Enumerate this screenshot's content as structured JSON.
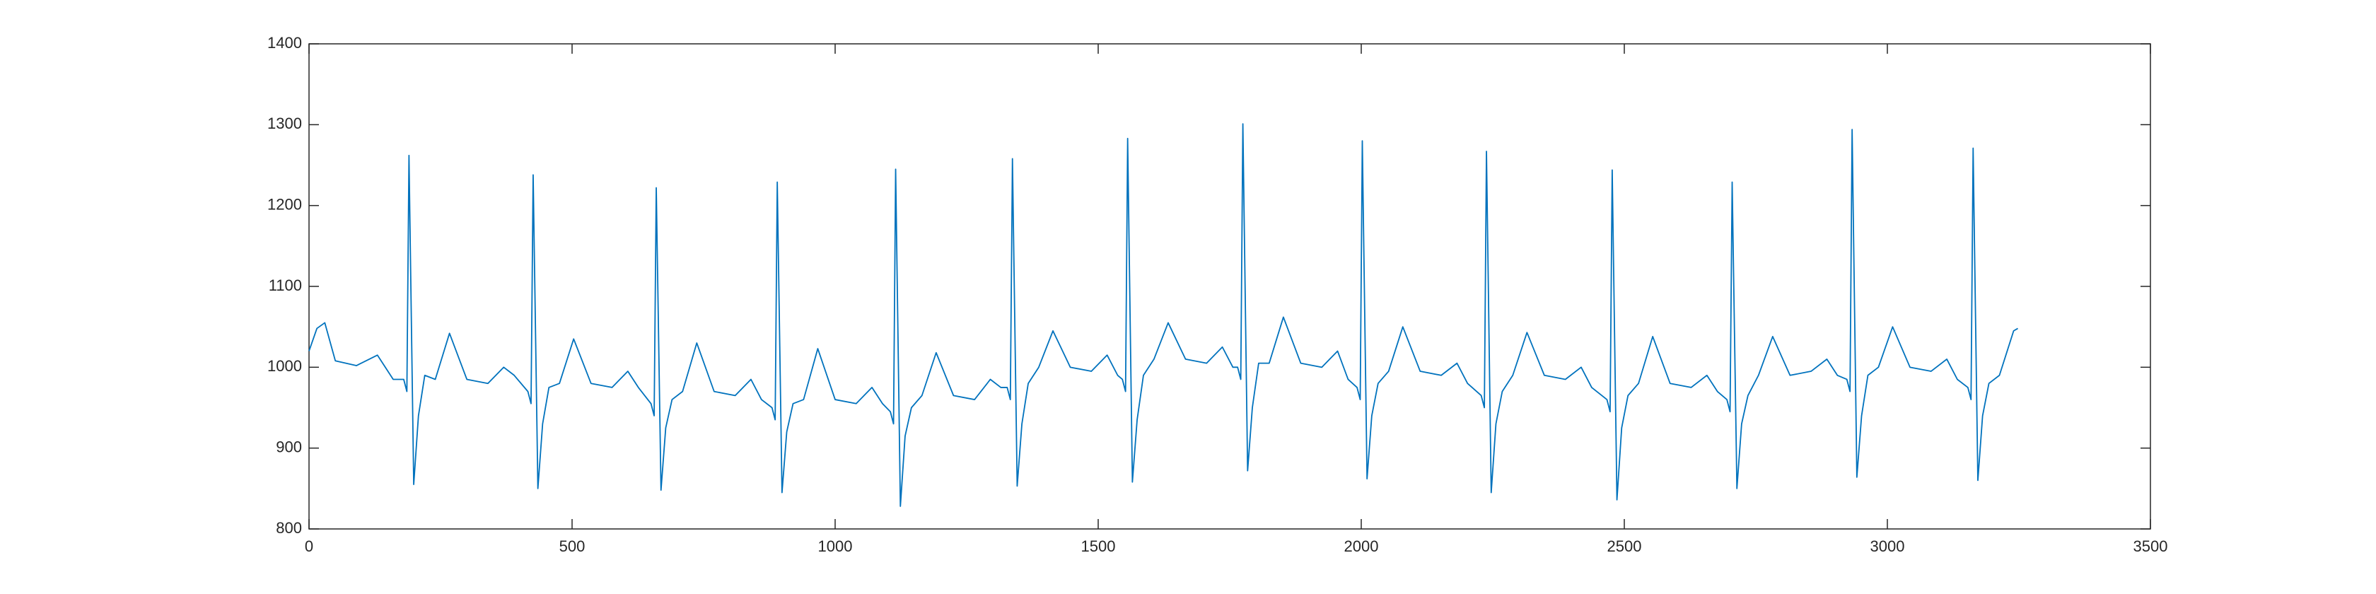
{
  "chart_data": {
    "type": "line",
    "x": [
      0,
      15,
      30,
      50,
      90,
      130,
      160,
      180,
      186,
      190,
      199,
      208,
      220,
      240,
      267,
      300,
      340,
      370,
      390,
      416,
      422,
      426,
      435,
      444,
      456,
      476,
      503,
      536,
      576,
      606,
      626,
      650,
      656,
      660,
      669,
      678,
      690,
      710,
      737,
      770,
      810,
      840,
      860,
      880,
      886,
      890,
      899,
      908,
      920,
      940,
      967,
      1000,
      1040,
      1070,
      1090,
      1105,
      1111,
      1115,
      1124,
      1133,
      1145,
      1165,
      1192,
      1225,
      1265,
      1295,
      1315,
      1327,
      1333,
      1337,
      1346,
      1355,
      1367,
      1387,
      1414,
      1447,
      1487,
      1517,
      1537,
      1546,
      1552,
      1556,
      1565,
      1574,
      1586,
      1606,
      1633,
      1666,
      1706,
      1736,
      1756,
      1765,
      1771,
      1775,
      1784,
      1793,
      1805,
      1825,
      1852,
      1885,
      1925,
      1955,
      1975,
      1992,
      1998,
      2002,
      2011,
      2020,
      2032,
      2052,
      2079,
      2112,
      2152,
      2182,
      2202,
      2228,
      2234,
      2238,
      2247,
      2256,
      2268,
      2288,
      2315,
      2348,
      2388,
      2418,
      2438,
      2467,
      2473,
      2477,
      2486,
      2495,
      2507,
      2527,
      2554,
      2587,
      2627,
      2657,
      2677,
      2695,
      2701,
      2705,
      2714,
      2723,
      2735,
      2755,
      2782,
      2815,
      2855,
      2885,
      2905,
      2923,
      2929,
      2933,
      2942,
      2951,
      2963,
      2983,
      3010,
      3043,
      3083,
      3113,
      3133,
      3153,
      3159,
      3163,
      3172,
      3181,
      3193,
      3213,
      3240,
      3248
    ],
    "series": [
      {
        "color": "#0072bd",
        "values": [
          1020,
          1048,
          1055,
          1008,
          1002,
          1015,
          985,
          985,
          970,
          1262,
          855,
          940,
          990,
          985,
          1042,
          985,
          980,
          1000,
          990,
          970,
          955,
          1238,
          850,
          930,
          975,
          980,
          1035,
          980,
          975,
          995,
          975,
          955,
          940,
          1222,
          848,
          925,
          960,
          970,
          1030,
          970,
          965,
          985,
          960,
          950,
          935,
          1229,
          845,
          920,
          955,
          960,
          1023,
          960,
          955,
          975,
          955,
          945,
          930,
          1245,
          828,
          915,
          950,
          965,
          1018,
          965,
          960,
          985,
          975,
          975,
          960,
          1258,
          853,
          930,
          980,
          1000,
          1045,
          1000,
          995,
          1015,
          990,
          985,
          970,
          1283,
          858,
          935,
          990,
          1010,
          1055,
          1010,
          1005,
          1025,
          1000,
          1000,
          985,
          1301,
          872,
          950,
          1005,
          1005,
          1062,
          1005,
          1000,
          1020,
          985,
          975,
          960,
          1280,
          862,
          940,
          980,
          995,
          1050,
          995,
          990,
          1005,
          980,
          965,
          950,
          1267,
          845,
          930,
          970,
          990,
          1043,
          990,
          985,
          1000,
          975,
          960,
          945,
          1244,
          836,
          925,
          965,
          980,
          1038,
          980,
          975,
          990,
          970,
          960,
          945,
          1229,
          850,
          930,
          965,
          990,
          1038,
          990,
          995,
          1010,
          990,
          985,
          970,
          1294,
          864,
          940,
          990,
          1000,
          1050,
          1000,
          995,
          1010,
          985,
          975,
          960,
          1271,
          860,
          940,
          980,
          990,
          1045,
          1048
        ]
      }
    ],
    "xlim": [
      0,
      3500
    ],
    "xticks": [
      0,
      500,
      1000,
      1500,
      2000,
      2500,
      3000,
      3500
    ],
    "ylim": [
      800,
      1400
    ],
    "yticks": [
      800,
      900,
      1000,
      1100,
      1200,
      1300,
      1400
    ],
    "box": true
  }
}
